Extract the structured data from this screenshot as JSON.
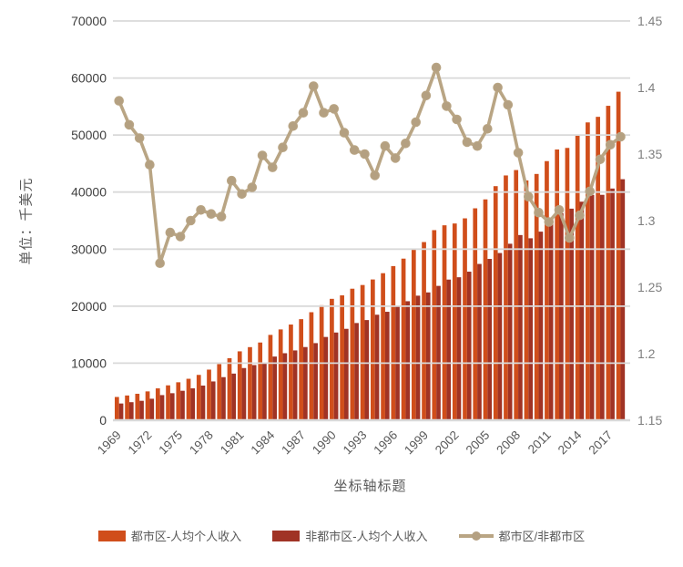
{
  "chart_data": {
    "type": "combo-bar-line",
    "title": "",
    "x": [
      1969,
      1970,
      1971,
      1972,
      1973,
      1974,
      1975,
      1976,
      1977,
      1978,
      1979,
      1980,
      1981,
      1982,
      1983,
      1984,
      1985,
      1986,
      1987,
      1988,
      1989,
      1990,
      1991,
      1992,
      1993,
      1994,
      1995,
      1996,
      1997,
      1998,
      1999,
      2000,
      2001,
      2002,
      2003,
      2004,
      2005,
      2006,
      2007,
      2008,
      2009,
      2010,
      2011,
      2012,
      2013,
      2014,
      2015,
      2016,
      2017,
      2018
    ],
    "series": [
      {
        "name": "都市区-人均个人收入",
        "type": "bar",
        "axis": "left",
        "color": "#D04E1B",
        "values": [
          4078,
          4341,
          4640,
          5057,
          5587,
          6118,
          6654,
          7268,
          7950,
          8875,
          9845,
          10877,
          12077,
          12817,
          13626,
          14963,
          15921,
          16778,
          17719,
          18938,
          20163,
          21283,
          21893,
          23059,
          23708,
          24678,
          25780,
          27026,
          28333,
          30007,
          31238,
          33328,
          34177,
          34494,
          35395,
          37154,
          38719,
          41041,
          42917,
          43863,
          42043,
          43180,
          45428,
          47468,
          47740,
          49961,
          52215,
          53194,
          55126,
          57598
        ]
      },
      {
        "name": "非都市区-人均个人收入",
        "type": "bar",
        "axis": "left",
        "color": "#A03325",
        "values": [
          2934,
          3164,
          3407,
          3768,
          4406,
          4739,
          5166,
          5591,
          6078,
          6801,
          7556,
          8178,
          9149,
          9673,
          10101,
          11166,
          11750,
          12238,
          12831,
          13517,
          14600,
          15378,
          16027,
          17043,
          17561,
          18499,
          19012,
          20064,
          20864,
          21839,
          22409,
          23554,
          24659,
          25068,
          26045,
          27400,
          28283,
          29315,
          30942,
          32467,
          31899,
          33063,
          34972,
          36291,
          37094,
          38314,
          39497,
          39520,
          40623,
          42258
        ]
      },
      {
        "name": "都市区/非都市区",
        "type": "line",
        "axis": "right",
        "color": "#B9A584",
        "marker_color": "#B4A081",
        "values": [
          1.39,
          1.372,
          1.362,
          1.342,
          1.268,
          1.291,
          1.288,
          1.3,
          1.308,
          1.305,
          1.303,
          1.33,
          1.32,
          1.325,
          1.349,
          1.34,
          1.355,
          1.371,
          1.381,
          1.401,
          1.381,
          1.384,
          1.366,
          1.353,
          1.35,
          1.334,
          1.356,
          1.347,
          1.358,
          1.374,
          1.394,
          1.415,
          1.386,
          1.376,
          1.359,
          1.356,
          1.369,
          1.4,
          1.387,
          1.351,
          1.318,
          1.306,
          1.299,
          1.308,
          1.287,
          1.304,
          1.322,
          1.346,
          1.357,
          1.363
        ]
      }
    ],
    "left_axis": {
      "title": "单位：千美元",
      "min": 0,
      "max": 70000,
      "step": 10000,
      "ticks": [
        "0",
        "10000",
        "20000",
        "30000",
        "40000",
        "50000",
        "60000",
        "70000"
      ],
      "label_color": "#404040"
    },
    "right_axis": {
      "min": 1.15,
      "max": 1.45,
      "step": 0.05,
      "ticks": [
        "1.15",
        "1.2",
        "1.25",
        "1.3",
        "1.35",
        "1.4",
        "1.45"
      ],
      "label_color": "#7F7F7F"
    },
    "x_axis": {
      "title": "坐标轴标题",
      "tick_labels": [
        "1969",
        "1972",
        "1975",
        "1978",
        "1981",
        "1984",
        "1987",
        "1990",
        "1993",
        "1996",
        "1999",
        "2002",
        "2005",
        "2008",
        "2011",
        "2014",
        "2017"
      ],
      "tick_every": 3,
      "label_color": "#595959",
      "label_angle_deg": -45
    },
    "grid": {
      "horizontal": true,
      "color": "#D9D9D9"
    },
    "legend_position": "bottom"
  }
}
